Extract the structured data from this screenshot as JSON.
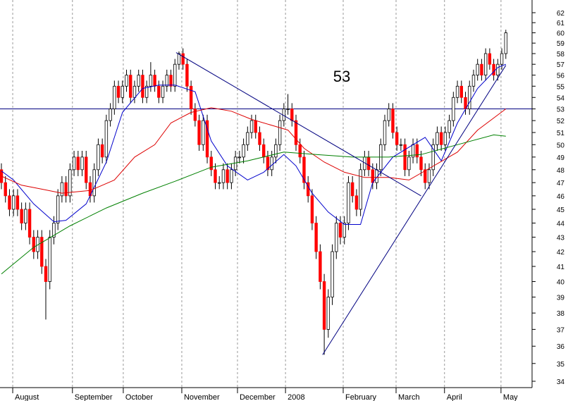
{
  "chart_data": {
    "type": "candlestick",
    "log_scale": true,
    "grid": true,
    "up_color": "#ffffff",
    "down_color": "#ff0000",
    "xlim": [
      -0.35,
      131.5
    ],
    "ylim": [
      34,
      62
    ],
    "yticks": [
      34,
      35,
      36,
      37,
      38,
      39,
      40,
      41,
      42,
      43,
      44,
      45,
      46,
      47,
      48,
      49,
      50,
      51,
      52,
      53,
      54,
      55,
      56,
      57,
      58,
      59,
      60,
      61,
      62
    ],
    "xticks": [
      {
        "value": 2.8,
        "label": "August"
      },
      {
        "value": 17.6,
        "label": "September"
      },
      {
        "value": 30.2,
        "label": "October"
      },
      {
        "value": 44.7,
        "label": "November"
      },
      {
        "value": 58.5,
        "label": "December"
      },
      {
        "value": 70.4,
        "label": "2008"
      },
      {
        "value": 84.7,
        "label": "February"
      },
      {
        "value": 97.8,
        "label": "March"
      },
      {
        "value": 109.8,
        "label": "April"
      },
      {
        "value": 123.8,
        "label": "May"
      }
    ],
    "open": [
      48,
      47,
      46,
      45,
      46,
      45,
      44,
      45,
      43,
      42,
      43,
      41,
      40,
      43,
      44,
      46,
      47,
      46,
      48,
      49,
      48,
      49,
      47,
      46,
      48,
      50,
      49,
      52,
      53,
      55,
      54,
      55,
      56,
      54,
      55,
      56,
      54,
      55,
      56,
      55,
      54,
      55,
      56,
      55,
      57,
      58,
      57,
      55,
      53,
      52,
      50,
      52,
      49,
      48,
      47,
      47,
      48,
      47,
      48,
      49,
      49,
      50,
      51,
      52,
      51,
      50,
      49,
      48,
      49,
      50,
      52,
      53,
      53,
      52,
      50,
      49,
      47,
      46,
      44,
      42,
      40,
      37,
      39,
      42,
      44,
      43,
      44,
      47,
      46,
      45,
      48,
      49,
      48,
      47,
      48,
      50,
      52,
      53,
      51,
      50,
      50,
      48,
      49,
      50,
      49,
      48,
      47,
      48,
      50,
      51,
      50,
      51,
      52,
      54,
      55,
      54,
      53,
      55,
      56,
      57,
      56,
      58,
      57,
      56,
      57,
      58
    ],
    "high": [
      48.5,
      47.5,
      46.5,
      46.5,
      46.5,
      45.5,
      45.5,
      45.5,
      43.5,
      43.5,
      43.5,
      41.5,
      43.5,
      44.5,
      46.5,
      47.5,
      47.5,
      48.5,
      49.5,
      49.5,
      49.5,
      49.5,
      47.5,
      48.5,
      50.5,
      50.5,
      52.5,
      53.5,
      55.5,
      55.5,
      55.5,
      56.5,
      56.5,
      55.5,
      56.5,
      56.5,
      55.5,
      57.2,
      56.5,
      55.5,
      55.5,
      56.5,
      56.5,
      57.5,
      58.2,
      58.5,
      57.5,
      55.5,
      53.5,
      52.5,
      52.5,
      52.5,
      49.5,
      48.5,
      47.5,
      48.5,
      48.5,
      48.5,
      49.5,
      49.5,
      50.5,
      51.5,
      52.5,
      52.5,
      51.5,
      50.5,
      49.5,
      49.5,
      50.5,
      52.5,
      53.5,
      54.3,
      53.5,
      52.5,
      50.5,
      49.5,
      47.5,
      46.5,
      44.5,
      42.5,
      40.5,
      39.5,
      42.5,
      44.5,
      44.5,
      44.5,
      47.5,
      47.5,
      46.5,
      48.5,
      49.5,
      49.5,
      48.5,
      48.5,
      50.5,
      52.5,
      53.5,
      53.5,
      51.5,
      50.5,
      50.5,
      49.5,
      50.5,
      50.5,
      49.5,
      48.5,
      48.5,
      50.5,
      51.5,
      51.5,
      51.5,
      52.5,
      54.5,
      55.5,
      55.5,
      54.5,
      55.5,
      56.5,
      57.5,
      57.5,
      58.5,
      58.5,
      57.5,
      57.5,
      58.5,
      60.3
    ],
    "low": [
      46.5,
      45.5,
      44.5,
      44.5,
      44.5,
      43.5,
      43.5,
      42.5,
      41.5,
      41.5,
      40.5,
      37.6,
      39.5,
      42.5,
      43.5,
      45.5,
      45.5,
      45.5,
      47.5,
      47.5,
      47.5,
      46.5,
      45.5,
      45.5,
      47.5,
      48.5,
      48.5,
      51.5,
      52.5,
      53.5,
      53.5,
      54.5,
      53.5,
      53.5,
      54.5,
      53.5,
      53.5,
      54.5,
      54.5,
      53.5,
      53.5,
      54.5,
      54.5,
      54.5,
      56.5,
      56.5,
      54.5,
      52.5,
      51.5,
      49.5,
      49.5,
      48.5,
      47.5,
      46.5,
      46.5,
      46.5,
      46.5,
      46.5,
      47.5,
      48.5,
      48.5,
      49.5,
      50.5,
      50.5,
      49.5,
      48.5,
      47.5,
      47.5,
      48.5,
      49.5,
      51.5,
      52.5,
      51.5,
      49.5,
      48.5,
      46.5,
      45.5,
      43.5,
      41.5,
      39.5,
      35.5,
      36.5,
      38.5,
      41.5,
      42.5,
      42.5,
      43.5,
      45.5,
      44.5,
      44.5,
      47.5,
      47.5,
      46.5,
      46.5,
      47.5,
      49.5,
      51.5,
      50.5,
      49.5,
      49.5,
      47.5,
      47.5,
      48.5,
      48.5,
      47.5,
      46.5,
      46.5,
      47.5,
      49.5,
      49.5,
      49.5,
      50.5,
      51.5,
      53.5,
      53.5,
      52.5,
      52.5,
      54.5,
      55.5,
      55.5,
      55.5,
      56.5,
      55.5,
      55.5,
      56.5,
      57.5
    ],
    "close": [
      47,
      46,
      45,
      46,
      45,
      44,
      45,
      43,
      42,
      43,
      41,
      40,
      43,
      44,
      46,
      47,
      46,
      48,
      49,
      48,
      49,
      47,
      46,
      48,
      50,
      49,
      52,
      53,
      55,
      54,
      55,
      56,
      54,
      55,
      56,
      54,
      55,
      56,
      55,
      54,
      55,
      56,
      55,
      57,
      58,
      57,
      55,
      53,
      52,
      50,
      52,
      49,
      48,
      47,
      47,
      48,
      47,
      48,
      49,
      49,
      50,
      51,
      52,
      51,
      50,
      49,
      48,
      49,
      50,
      52,
      53,
      53,
      52,
      50,
      49,
      47,
      46,
      44,
      42,
      40,
      37,
      39,
      42,
      44,
      43,
      44,
      47,
      46,
      45,
      48,
      49,
      48,
      47,
      48,
      50,
      52,
      53,
      51,
      50,
      50,
      48,
      49,
      50,
      49,
      48,
      47,
      48,
      50,
      51,
      50,
      51,
      52,
      54,
      55,
      54,
      53,
      55,
      56,
      57,
      56,
      58,
      57,
      56,
      57,
      58,
      60
    ],
    "series": [
      {
        "color": "#0000cc",
        "x": [
          0,
          3,
          8,
          13,
          16,
          21,
          26,
          30,
          35,
          39,
          43,
          48,
          52,
          56,
          61,
          65,
          70,
          73,
          77,
          81,
          85,
          89,
          92,
          97,
          102,
          105,
          109,
          113,
          118,
          123,
          125
        ],
        "values": [
          47.9,
          47.2,
          45.4,
          44.1,
          44.2,
          45.4,
          48.6,
          52.7,
          54.8,
          55.1,
          55.1,
          54.5,
          50.3,
          48.3,
          47.2,
          47.8,
          49.2,
          48.3,
          46.2,
          44.8,
          43.9,
          43.9,
          47.0,
          49.0,
          50.0,
          50.6,
          48.7,
          51.8,
          54.8,
          56.7,
          57.0
        ]
      },
      {
        "color": "#dd0000",
        "x": [
          0,
          5,
          10,
          15,
          22,
          28,
          33,
          38,
          42,
          47,
          52,
          57,
          62,
          68,
          71,
          75,
          80,
          85,
          90,
          96,
          101,
          106,
          113,
          118,
          125
        ],
        "values": [
          47.5,
          46.8,
          46.5,
          46.2,
          46.4,
          47.2,
          49.0,
          50.0,
          51.8,
          52.7,
          53.1,
          52.8,
          52.1,
          51.5,
          51.2,
          49.7,
          48.6,
          47.8,
          47.4,
          47.4,
          47.2,
          48.1,
          49.4,
          51.2,
          53.0
        ]
      },
      {
        "color": "#008000",
        "x": [
          0,
          8,
          17,
          26,
          35,
          43,
          52,
          61,
          70,
          78,
          87,
          96,
          104,
          113,
          122,
          125
        ],
        "values": [
          40.5,
          42.3,
          43.8,
          45.1,
          46.2,
          47.1,
          48.2,
          48.7,
          49.4,
          49.2,
          49.0,
          49.0,
          49.2,
          50.0,
          50.8,
          50.7
        ]
      }
    ],
    "trendlines": [
      {
        "color": "#000080",
        "x": [
          43.3,
          104
        ],
        "values": [
          58.1,
          46.0
        ]
      },
      {
        "color": "#000080",
        "x": [
          79.6,
          125
        ],
        "values": [
          35.5,
          56.9
        ]
      }
    ],
    "hline": {
      "value": 53,
      "color": "#000080"
    },
    "annotation": "53"
  }
}
